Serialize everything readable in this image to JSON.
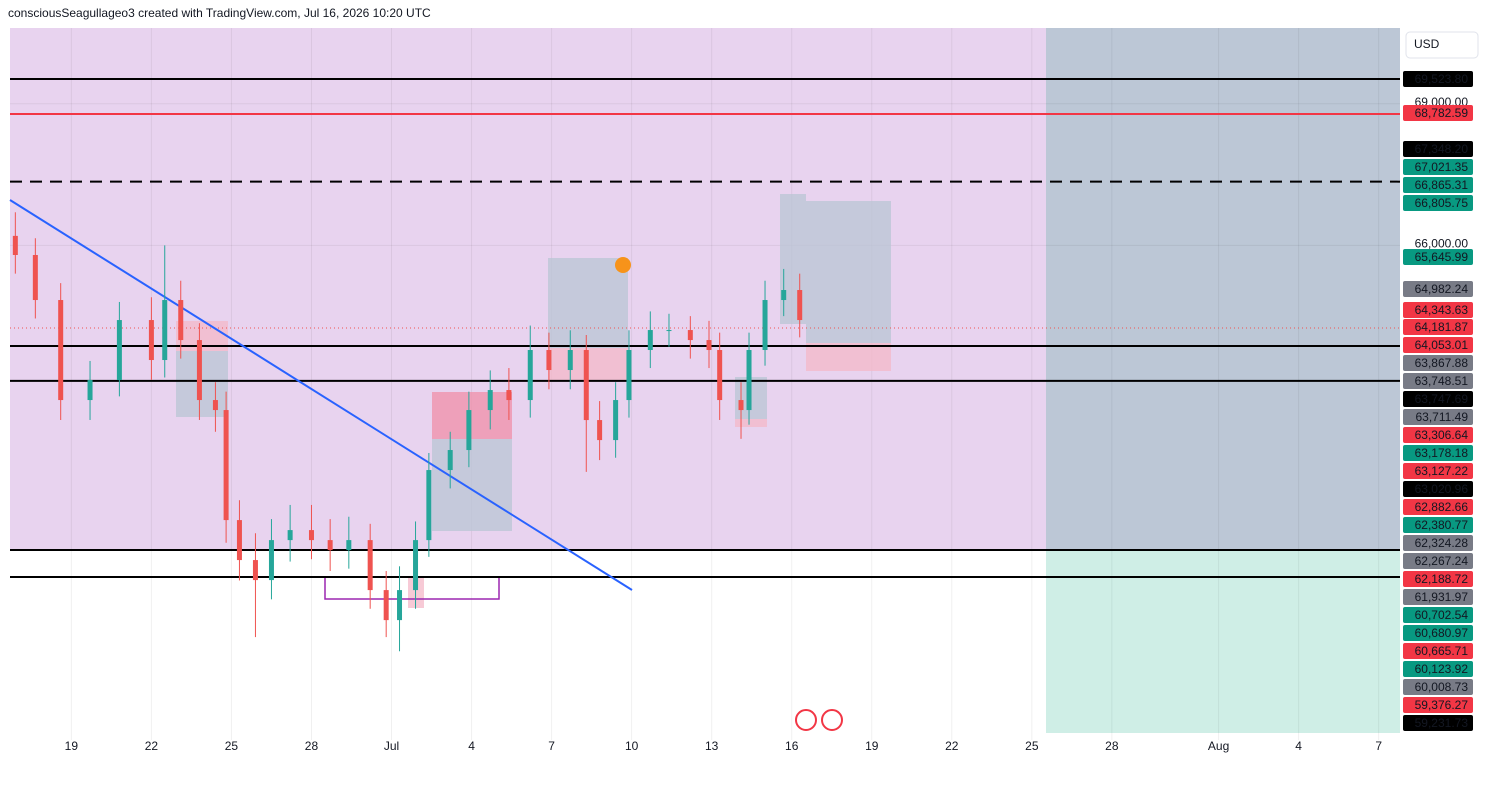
{
  "chart_data": {
    "type": "candlestick",
    "title": "consciousSeagullageo3 created with TradingView.com, Jul 16, 2026 10:20 UTC",
    "currency": "USD",
    "xlim": [
      16.7,
      68.8
    ],
    "xticks": [
      19,
      22,
      25,
      28,
      {
        "value": 31,
        "label": "Jul"
      },
      {
        "value": 34,
        "label": "4"
      },
      {
        "value": 37,
        "label": "7"
      },
      {
        "value": 40,
        "label": "10"
      },
      {
        "value": 43,
        "label": "13"
      },
      {
        "value": 46,
        "label": "16"
      },
      {
        "value": 49,
        "label": "19"
      },
      {
        "value": 52,
        "label": "22"
      },
      {
        "value": 55,
        "label": "25"
      },
      {
        "value": 58,
        "label": "28"
      },
      {
        "value": 62,
        "label": "Aug"
      },
      {
        "value": 65,
        "label": "4"
      },
      {
        "value": 68,
        "label": "7"
      }
    ],
    "ylim": [
      55520,
      70604
    ],
    "yticks": [
      {
        "value": 69000,
        "label": "69,000.00"
      },
      {
        "value": 66000,
        "label": "66,000.00"
      }
    ],
    "grid": true,
    "up_color": "#26a69a",
    "down_color": "#ef5350",
    "x": [
      16.9,
      17.65,
      18.6,
      19.7,
      20.8,
      22.0,
      22.5,
      23.1,
      23.8,
      24.4,
      24.8,
      25.3,
      25.9,
      26.5,
      27.2,
      28.0,
      28.7,
      29.4,
      30.2,
      30.8,
      31.3,
      31.9,
      32.4,
      33.2,
      33.9,
      34.7,
      35.4,
      36.2,
      36.9,
      37.7,
      38.3,
      38.8,
      39.4,
      39.9,
      40.7,
      41.4,
      42.2,
      42.9,
      43.3,
      44.1,
      44.4,
      45.0,
      45.7,
      46.3
    ],
    "open": [
      66200,
      65795,
      64841,
      62722,
      63146,
      64417,
      63570,
      64841,
      63993,
      62722,
      62510,
      60179,
      59332,
      58908,
      59755,
      59967,
      59755,
      59544,
      59755,
      58696,
      58060,
      58696,
      59755,
      61239,
      61663,
      62510,
      62934,
      62722,
      63782,
      63358,
      63782,
      62298,
      61874,
      62722,
      63782,
      64205,
      64205,
      63993,
      63782,
      62722,
      62510,
      63782,
      64841,
      65053
    ],
    "high": [
      66700,
      66150,
      65200,
      63550,
      64800,
      64900,
      66000,
      65250,
      64350,
      63100,
      62900,
      60600,
      59900,
      60200,
      60500,
      60500,
      60200,
      60250,
      60100,
      59100,
      59200,
      60150,
      61600,
      62050,
      62900,
      63350,
      63400,
      64300,
      64150,
      64200,
      64100,
      62700,
      63100,
      64200,
      64600,
      64550,
      64500,
      64400,
      64150,
      63100,
      64150,
      65250,
      65500,
      65400
    ],
    "low": [
      65400,
      64450,
      62300,
      62300,
      62800,
      63150,
      63200,
      63600,
      62300,
      62050,
      59700,
      58900,
      57700,
      58500,
      59300,
      59350,
      59100,
      59150,
      58300,
      57700,
      57400,
      58300,
      59400,
      60850,
      61300,
      62100,
      62300,
      62350,
      62950,
      62950,
      61200,
      61450,
      61500,
      62350,
      63400,
      63850,
      63600,
      63400,
      62300,
      61900,
      62200,
      63450,
      64500,
      64050
    ],
    "close": [
      65795,
      64841,
      62722,
      63146,
      64417,
      63570,
      64841,
      63993,
      62722,
      62510,
      60179,
      59332,
      58908,
      59755,
      59967,
      59755,
      59544,
      59755,
      58696,
      58060,
      58696,
      59755,
      61239,
      61663,
      62510,
      62934,
      62722,
      63782,
      63358,
      63782,
      62298,
      61874,
      62722,
      63782,
      64205,
      64205,
      63993,
      63782,
      62722,
      62510,
      63782,
      64841,
      65053,
      64417
    ],
    "levels": [
      {
        "value": 69523.8,
        "color": "#000000",
        "style": "solid"
      },
      {
        "value": 68782.59,
        "color": "#f23645",
        "style": "solid"
      },
      {
        "value": 67348.2,
        "color": "#000000",
        "style": "dashed"
      },
      {
        "value": 64248,
        "color": "#ef5350",
        "style": "dotted"
      },
      {
        "value": 63867.88,
        "color": "#000000",
        "style": "solid"
      },
      {
        "value": 63127.22,
        "color": "#000000",
        "style": "solid"
      },
      {
        "value": 59545,
        "color": "#000000",
        "style": "solid"
      },
      {
        "value": 58973,
        "color": "#000000",
        "style": "solid"
      }
    ],
    "price_labels": [
      {
        "value": 69523.8,
        "label": "69,523.80",
        "color": "#000000"
      },
      {
        "value": 68782.59,
        "label": "68,782.59",
        "color": "#f23645"
      },
      {
        "value": 67348.2,
        "label": "67,348.20",
        "color": "#000000"
      },
      {
        "value": 67021.35,
        "label": "67,021.35",
        "color": "#089981"
      },
      {
        "value": 66865.31,
        "label": "66,865.31",
        "color": "#089981"
      },
      {
        "value": 66805.75,
        "label": "66,805.75",
        "color": "#089981"
      },
      {
        "value": 65645.99,
        "label": "65,645.99",
        "color": "#089981"
      },
      {
        "value": 64982.24,
        "label": "64,982.24",
        "color": "#787b86"
      },
      {
        "value": 64343.63,
        "label": "64,343.63",
        "color": "#f23645"
      },
      {
        "value": 64181.87,
        "label": "64,181.87",
        "color": "#f23645"
      },
      {
        "value": 64053.01,
        "label": "64,053.01",
        "color": "#f23645"
      },
      {
        "value": 63867.88,
        "label": "63,867.88",
        "color": "#787b86"
      },
      {
        "value": 63748.51,
        "label": "63,748.51",
        "color": "#787b86"
      },
      {
        "value": 63747.69,
        "label": "63,747.69",
        "color": "#000000"
      },
      {
        "value": 63711.49,
        "label": "63,711.49",
        "color": "#787b86"
      },
      {
        "value": 63306.64,
        "label": "63,306.64",
        "color": "#f23645"
      },
      {
        "value": 63178.18,
        "label": "63,178.18",
        "color": "#089981"
      },
      {
        "value": 63127.22,
        "label": "63,127.22",
        "color": "#f23645"
      },
      {
        "value": 63020.96,
        "label": "63,020.96",
        "color": "#000000"
      },
      {
        "value": 62882.66,
        "label": "62,882.66",
        "color": "#f23645"
      },
      {
        "value": 62380.77,
        "label": "62,380.77",
        "color": "#089981"
      },
      {
        "value": 62324.28,
        "label": "62,324.28",
        "color": "#787b86"
      },
      {
        "value": 62267.24,
        "label": "62,267.24",
        "color": "#787b86"
      },
      {
        "value": 62188.72,
        "label": "62,188.72",
        "color": "#f23645"
      },
      {
        "value": 61931.97,
        "label": "61,931.97",
        "color": "#787b86"
      },
      {
        "value": 60702.54,
        "label": "60,702.54",
        "color": "#089981"
      },
      {
        "value": 60680.97,
        "label": "60,680.97",
        "color": "#089981"
      },
      {
        "value": 60665.71,
        "label": "60,665.71",
        "color": "#f23645"
      },
      {
        "value": 60123.92,
        "label": "60,123.92",
        "color": "#089981"
      },
      {
        "value": 60008.73,
        "label": "60,008.73",
        "color": "#787b86"
      },
      {
        "value": 59376.27,
        "label": "59,376.27",
        "color": "#f23645"
      },
      {
        "value": 59231.73,
        "label": "59,231.73",
        "color": "#000000"
      }
    ]
  }
}
